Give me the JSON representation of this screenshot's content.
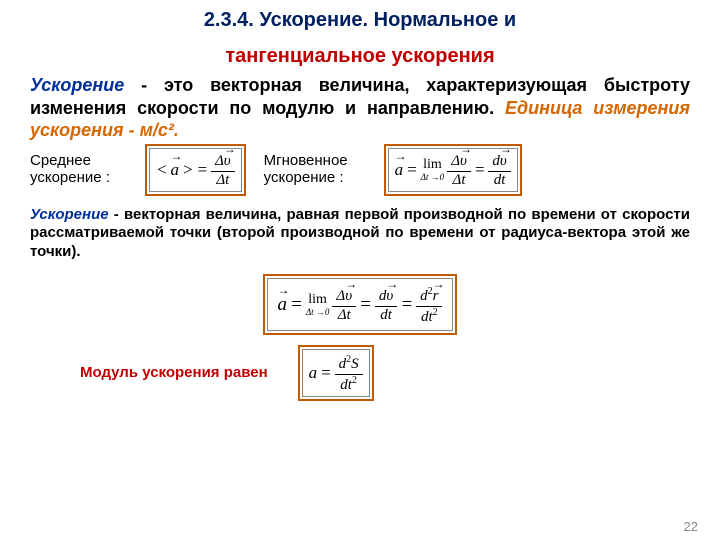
{
  "colors": {
    "title": "#002060",
    "red": "#c00000",
    "blue_italic": "#002e9a",
    "orange_border": "#bf5b00",
    "page_num": "#898989",
    "text": "#000000",
    "inner_border": "#888888",
    "background": "#ffffff"
  },
  "title_line1": "2.3.4. Ускорение. Нормальное и",
  "title_line2": "тангенциальное ускорения",
  "para1": {
    "t1": "Ускорение",
    "t2": " - это векторная величина, характеризующая быстроту изменения скорости по модулю и направлению. ",
    "t3": "Единица измерения ускорения - м/с²."
  },
  "labels": {
    "avg": "Среднее ускорение :",
    "inst": "Мгновенное ускорение :",
    "mod": "Модуль ускорения равен"
  },
  "para2": {
    "t1": "Ускорение",
    "t2": " - векторная величина, равная первой производной по времени от скорости рассматриваемой точки (второй производной по времени от радиуса-вектора этой же точки)."
  },
  "page_number": "22",
  "formulas": {
    "avg": {
      "lhs_open": "<",
      "a": "a",
      "lhs_close": ">",
      "eq": "=",
      "num_delta": "Δ",
      "num_v": "υ",
      "den": "Δt"
    },
    "inst": {
      "a": "a",
      "eq": "=",
      "lim": "lim",
      "lim_sub": "Δt →0",
      "f1_num_d": "Δ",
      "f1_num_v": "υ",
      "f1_den": "Δt",
      "eq2": "=",
      "f2_num": "d",
      "f2_num_v": "υ",
      "f2_den": "dt"
    },
    "big": {
      "a": "a",
      "eq": "=",
      "lim": "lim",
      "lim_sub": "Δt →0",
      "f1_num_d": "Δ",
      "f1_num_v": "υ",
      "f1_den": "Δt",
      "eq2": "=",
      "f2_num": "d",
      "f2_num_v": "υ",
      "f2_den": "dt",
      "eq3": "=",
      "f3_num1": "d",
      "f3_sq": "2",
      "f3_num_r": "r",
      "f3_den1": "dt",
      "f3_den_sq": "2"
    },
    "mod": {
      "a": "a",
      "eq": "=",
      "num1": "d",
      "sq": "2",
      "num2": "S",
      "den1": "dt",
      "den_sq": "2"
    }
  }
}
